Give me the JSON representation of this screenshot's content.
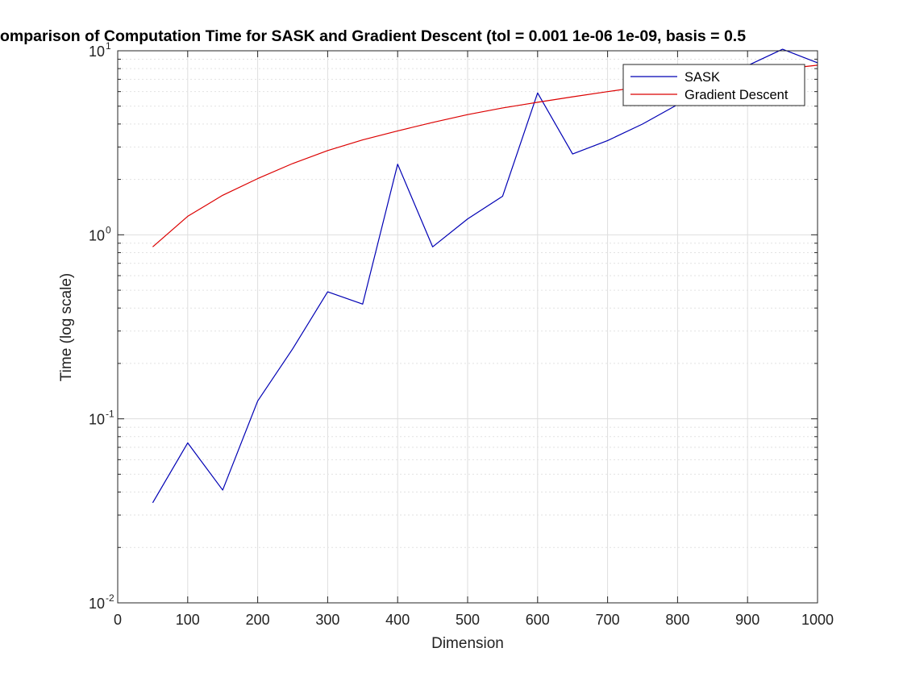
{
  "chart_data": {
    "type": "line",
    "title": "omparison of Computation Time for SASK and Gradient Descent (tol = 0.001        1e-06        1e-09, basis = 0.5",
    "xlabel": "Dimension",
    "ylabel": "Time (log scale)",
    "xlim": [
      0,
      1000
    ],
    "ylim": [
      0.01,
      10
    ],
    "yscale": "log",
    "grid": true,
    "minor_grid": true,
    "legend_position": "top-right",
    "x_ticks": [
      "0",
      "100",
      "200",
      "300",
      "400",
      "500",
      "600",
      "700",
      "800",
      "900",
      "1000"
    ],
    "y_ticks": [
      {
        "base": "10",
        "exp": "-2"
      },
      {
        "base": "10",
        "exp": "-1"
      },
      {
        "base": "10",
        "exp": "0"
      },
      {
        "base": "10",
        "exp": "1"
      }
    ],
    "x": [
      50,
      100,
      150,
      200,
      250,
      300,
      350,
      400,
      450,
      500,
      550,
      600,
      650,
      700,
      750,
      800,
      850,
      900,
      950,
      1000
    ],
    "series": [
      {
        "name": "SASK",
        "color": "#0000b4",
        "values": [
          0.035,
          0.074,
          0.041,
          0.125,
          0.24,
          0.49,
          0.42,
          2.42,
          0.86,
          1.22,
          1.62,
          5.9,
          2.75,
          3.25,
          4.0,
          5.1,
          6.9,
          8.3,
          10.2,
          8.6
        ]
      },
      {
        "name": "Gradient Descent",
        "color": "#dc0000",
        "values": [
          0.86,
          1.26,
          1.64,
          2.02,
          2.44,
          2.87,
          3.28,
          3.67,
          4.08,
          4.5,
          4.89,
          5.25,
          5.62,
          6.0,
          6.38,
          6.75,
          7.15,
          7.55,
          7.95,
          8.35
        ]
      }
    ]
  }
}
